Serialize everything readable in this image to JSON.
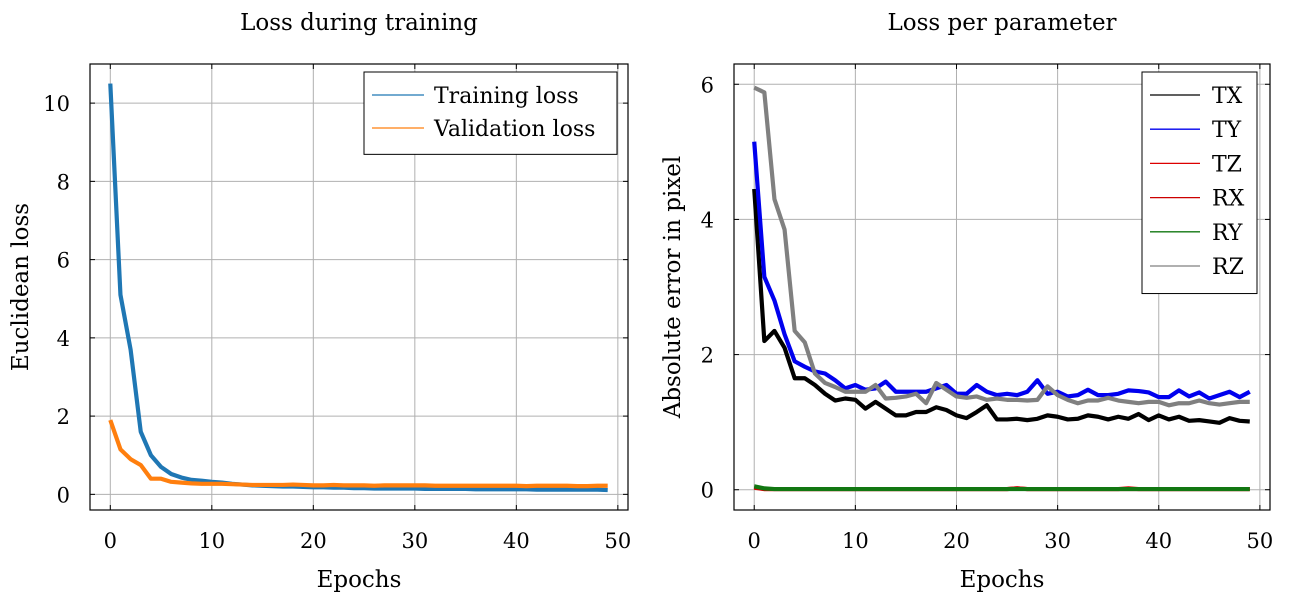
{
  "chart_data": [
    {
      "type": "line",
      "title": "Loss during training",
      "xlabel": "Epochs",
      "ylabel": "Euclidean loss",
      "xlim": [
        -2,
        51
      ],
      "ylim": [
        -0.4,
        11.0
      ],
      "xticks": [
        0,
        10,
        20,
        30,
        40,
        50
      ],
      "yticks": [
        0,
        2,
        4,
        6,
        8,
        10
      ],
      "grid": true,
      "legend_position": "top-right",
      "series": [
        {
          "name": "Training loss",
          "color": "#1f77b4",
          "x": [
            0,
            1,
            2,
            3,
            4,
            5,
            6,
            7,
            8,
            9,
            10,
            11,
            12,
            13,
            14,
            15,
            16,
            17,
            18,
            19,
            20,
            21,
            22,
            23,
            24,
            25,
            26,
            27,
            28,
            29,
            30,
            31,
            32,
            33,
            34,
            35,
            36,
            37,
            38,
            39,
            40,
            41,
            42,
            43,
            44,
            45,
            46,
            47,
            48,
            49
          ],
          "values": [
            10.5,
            5.1,
            3.7,
            1.6,
            1.0,
            0.7,
            0.52,
            0.43,
            0.37,
            0.35,
            0.32,
            0.3,
            0.27,
            0.25,
            0.23,
            0.22,
            0.21,
            0.2,
            0.2,
            0.19,
            0.18,
            0.18,
            0.17,
            0.17,
            0.16,
            0.16,
            0.15,
            0.15,
            0.15,
            0.15,
            0.15,
            0.14,
            0.14,
            0.14,
            0.14,
            0.14,
            0.13,
            0.13,
            0.13,
            0.13,
            0.13,
            0.13,
            0.12,
            0.12,
            0.12,
            0.12,
            0.12,
            0.12,
            0.12,
            0.11
          ]
        },
        {
          "name": "Validation loss",
          "color": "#ff7f0e",
          "x": [
            0,
            1,
            2,
            3,
            4,
            5,
            6,
            7,
            8,
            9,
            10,
            11,
            12,
            13,
            14,
            15,
            16,
            17,
            18,
            19,
            20,
            21,
            22,
            23,
            24,
            25,
            26,
            27,
            28,
            29,
            30,
            31,
            32,
            33,
            34,
            35,
            36,
            37,
            38,
            39,
            40,
            41,
            42,
            43,
            44,
            45,
            46,
            47,
            48,
            49
          ],
          "values": [
            1.9,
            1.15,
            0.9,
            0.75,
            0.4,
            0.4,
            0.32,
            0.3,
            0.28,
            0.27,
            0.27,
            0.27,
            0.26,
            0.25,
            0.24,
            0.24,
            0.24,
            0.24,
            0.25,
            0.24,
            0.23,
            0.23,
            0.24,
            0.23,
            0.23,
            0.23,
            0.22,
            0.23,
            0.23,
            0.23,
            0.23,
            0.23,
            0.22,
            0.22,
            0.22,
            0.22,
            0.22,
            0.22,
            0.22,
            0.22,
            0.22,
            0.21,
            0.22,
            0.22,
            0.22,
            0.22,
            0.21,
            0.21,
            0.22,
            0.22
          ]
        }
      ]
    },
    {
      "type": "line",
      "title": "Loss per parameter",
      "xlabel": "Epochs",
      "ylabel": "Absolute error in pixel",
      "xlim": [
        -2,
        51
      ],
      "ylim": [
        -0.3,
        6.3
      ],
      "xticks": [
        0,
        10,
        20,
        30,
        40,
        50
      ],
      "yticks": [
        0,
        2,
        4,
        6
      ],
      "grid": true,
      "legend_position": "top-right",
      "series": [
        {
          "name": "TX",
          "color": "#000000",
          "x": [
            0,
            1,
            2,
            3,
            4,
            5,
            6,
            7,
            8,
            9,
            10,
            11,
            12,
            13,
            14,
            15,
            16,
            17,
            18,
            19,
            20,
            21,
            22,
            23,
            24,
            25,
            26,
            27,
            28,
            29,
            30,
            31,
            32,
            33,
            34,
            35,
            36,
            37,
            38,
            39,
            40,
            41,
            42,
            43,
            44,
            45,
            46,
            47,
            48,
            49
          ],
          "values": [
            4.45,
            2.2,
            2.35,
            2.1,
            1.65,
            1.65,
            1.55,
            1.42,
            1.32,
            1.35,
            1.33,
            1.2,
            1.3,
            1.2,
            1.1,
            1.1,
            1.15,
            1.15,
            1.22,
            1.18,
            1.1,
            1.06,
            1.15,
            1.25,
            1.04,
            1.04,
            1.05,
            1.03,
            1.05,
            1.1,
            1.08,
            1.04,
            1.05,
            1.1,
            1.08,
            1.04,
            1.08,
            1.05,
            1.12,
            1.03,
            1.1,
            1.04,
            1.08,
            1.02,
            1.03,
            1.01,
            0.99,
            1.06,
            1.02,
            1.01
          ]
        },
        {
          "name": "TY",
          "color": "#0000ee",
          "x": [
            0,
            1,
            2,
            3,
            4,
            5,
            6,
            7,
            8,
            9,
            10,
            11,
            12,
            13,
            14,
            15,
            16,
            17,
            18,
            19,
            20,
            21,
            22,
            23,
            24,
            25,
            26,
            27,
            28,
            29,
            30,
            31,
            32,
            33,
            34,
            35,
            36,
            37,
            38,
            39,
            40,
            41,
            42,
            43,
            44,
            45,
            46,
            47,
            48,
            49
          ],
          "values": [
            5.15,
            3.15,
            2.8,
            2.3,
            1.9,
            1.82,
            1.75,
            1.72,
            1.62,
            1.5,
            1.55,
            1.48,
            1.5,
            1.6,
            1.45,
            1.45,
            1.45,
            1.45,
            1.5,
            1.55,
            1.42,
            1.42,
            1.55,
            1.45,
            1.4,
            1.42,
            1.4,
            1.45,
            1.62,
            1.42,
            1.45,
            1.38,
            1.4,
            1.48,
            1.4,
            1.4,
            1.42,
            1.47,
            1.46,
            1.44,
            1.37,
            1.37,
            1.47,
            1.38,
            1.44,
            1.35,
            1.4,
            1.45,
            1.37,
            1.45
          ]
        },
        {
          "name": "TZ",
          "color": "#dd0000",
          "x": [
            0,
            1,
            2,
            3,
            4,
            5,
            6,
            7,
            8,
            9,
            10,
            11,
            12,
            13,
            14,
            15,
            16,
            17,
            18,
            19,
            20,
            21,
            22,
            23,
            24,
            25,
            26,
            27,
            28,
            29,
            30,
            31,
            32,
            33,
            34,
            35,
            36,
            37,
            38,
            39,
            40,
            41,
            42,
            43,
            44,
            45,
            46,
            47,
            48,
            49
          ],
          "values": [
            0.03,
            0.01,
            0.01,
            0.01,
            0.01,
            0.01,
            0.01,
            0.01,
            0.01,
            0.01,
            0.01,
            0.01,
            0.01,
            0.01,
            0.01,
            0.01,
            0.01,
            0.01,
            0.01,
            0.01,
            0.01,
            0.01,
            0.01,
            0.01,
            0.01,
            0.01,
            0.02,
            0.01,
            0.01,
            0.01,
            0.01,
            0.01,
            0.01,
            0.01,
            0.01,
            0.01,
            0.01,
            0.02,
            0.01,
            0.01,
            0.01,
            0.01,
            0.01,
            0.01,
            0.01,
            0.01,
            0.01,
            0.01,
            0.01,
            0.01
          ]
        },
        {
          "name": "RX",
          "color": "#cc0000",
          "x": [
            0,
            1,
            2,
            3,
            4,
            5,
            6,
            7,
            8,
            9,
            10,
            11,
            12,
            13,
            14,
            15,
            16,
            17,
            18,
            19,
            20,
            21,
            22,
            23,
            24,
            25,
            26,
            27,
            28,
            29,
            30,
            31,
            32,
            33,
            34,
            35,
            36,
            37,
            38,
            39,
            40,
            41,
            42,
            43,
            44,
            45,
            46,
            47,
            48,
            49
          ],
          "values": [
            0.04,
            0.01,
            0.01,
            0.01,
            0.01,
            0.01,
            0.01,
            0.01,
            0.01,
            0.01,
            0.01,
            0.01,
            0.01,
            0.01,
            0.01,
            0.01,
            0.01,
            0.01,
            0.01,
            0.01,
            0.01,
            0.01,
            0.01,
            0.01,
            0.01,
            0.01,
            0.02,
            0.01,
            0.01,
            0.01,
            0.01,
            0.01,
            0.01,
            0.01,
            0.01,
            0.01,
            0.01,
            0.01,
            0.01,
            0.01,
            0.01,
            0.01,
            0.01,
            0.01,
            0.01,
            0.01,
            0.01,
            0.01,
            0.01,
            0.01
          ]
        },
        {
          "name": "RY",
          "color": "#117711",
          "x": [
            0,
            1,
            2,
            3,
            4,
            5,
            6,
            7,
            8,
            9,
            10,
            11,
            12,
            13,
            14,
            15,
            16,
            17,
            18,
            19,
            20,
            21,
            22,
            23,
            24,
            25,
            26,
            27,
            28,
            29,
            30,
            31,
            32,
            33,
            34,
            35,
            36,
            37,
            38,
            39,
            40,
            41,
            42,
            43,
            44,
            45,
            46,
            47,
            48,
            49
          ],
          "values": [
            0.05,
            0.02,
            0.01,
            0.01,
            0.01,
            0.01,
            0.01,
            0.01,
            0.01,
            0.01,
            0.01,
            0.01,
            0.01,
            0.01,
            0.01,
            0.01,
            0.01,
            0.01,
            0.01,
            0.01,
            0.01,
            0.01,
            0.01,
            0.01,
            0.01,
            0.01,
            0.01,
            0.01,
            0.01,
            0.01,
            0.01,
            0.01,
            0.01,
            0.01,
            0.01,
            0.01,
            0.01,
            0.01,
            0.01,
            0.01,
            0.01,
            0.01,
            0.01,
            0.01,
            0.01,
            0.01,
            0.01,
            0.01,
            0.01,
            0.01
          ]
        },
        {
          "name": "RZ",
          "color": "#808080",
          "x": [
            0,
            1,
            2,
            3,
            4,
            5,
            6,
            7,
            8,
            9,
            10,
            11,
            12,
            13,
            14,
            15,
            16,
            17,
            18,
            19,
            20,
            21,
            22,
            23,
            24,
            25,
            26,
            27,
            28,
            29,
            30,
            31,
            32,
            33,
            34,
            35,
            36,
            37,
            38,
            39,
            40,
            41,
            42,
            43,
            44,
            45,
            46,
            47,
            48,
            49
          ],
          "values": [
            5.95,
            5.88,
            4.3,
            3.85,
            2.35,
            2.18,
            1.72,
            1.58,
            1.52,
            1.45,
            1.45,
            1.45,
            1.55,
            1.35,
            1.36,
            1.38,
            1.42,
            1.28,
            1.58,
            1.48,
            1.38,
            1.36,
            1.38,
            1.33,
            1.35,
            1.33,
            1.33,
            1.32,
            1.33,
            1.53,
            1.4,
            1.33,
            1.28,
            1.32,
            1.32,
            1.36,
            1.32,
            1.3,
            1.28,
            1.3,
            1.3,
            1.25,
            1.28,
            1.28,
            1.32,
            1.28,
            1.26,
            1.28,
            1.3,
            1.3
          ]
        }
      ]
    }
  ]
}
